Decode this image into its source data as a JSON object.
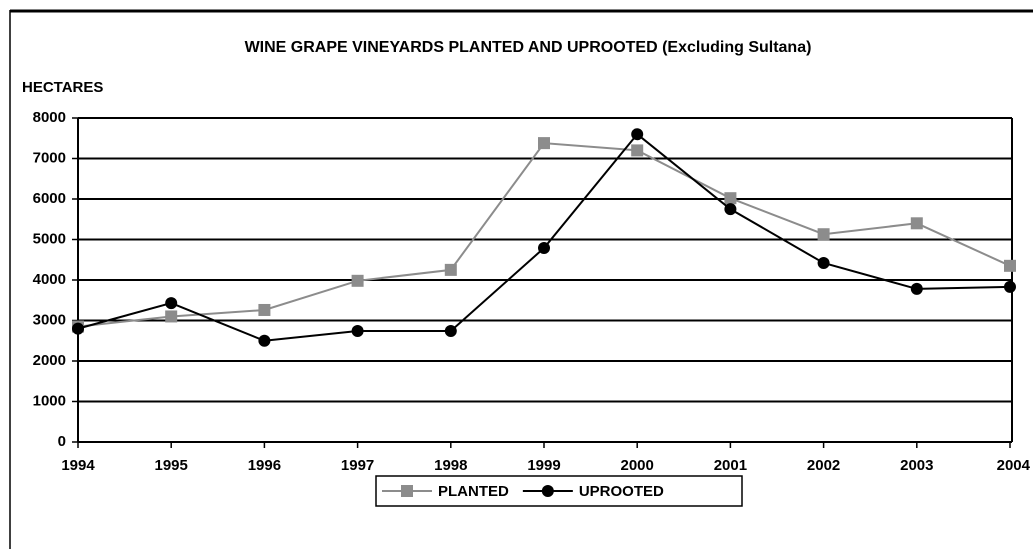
{
  "chart_data": {
    "type": "line",
    "title": "WINE GRAPE VINEYARDS PLANTED AND UPROOTED (Excluding Sultana)",
    "y_label": "HECTARES",
    "categories": [
      "1994",
      "1995",
      "1996",
      "1997",
      "1998",
      "1999",
      "2000",
      "2001",
      "2002",
      "2003",
      "2004"
    ],
    "series": [
      {
        "name": "PLANTED",
        "color": "#8c8c8c",
        "marker": "square",
        "values": [
          2850,
          3100,
          3260,
          3980,
          4250,
          7380,
          7200,
          6020,
          5130,
          5400,
          4350
        ]
      },
      {
        "name": "UPROOTED",
        "color": "#000000",
        "marker": "circle",
        "values": [
          2800,
          3430,
          2500,
          2740,
          2740,
          4790,
          7600,
          5750,
          4420,
          3780,
          3830
        ]
      }
    ],
    "ylim": [
      0,
      8000
    ],
    "yticks": [
      0,
      1000,
      2000,
      3000,
      4000,
      5000,
      6000,
      7000,
      8000
    ],
    "grid": true,
    "legend": "bottom"
  }
}
